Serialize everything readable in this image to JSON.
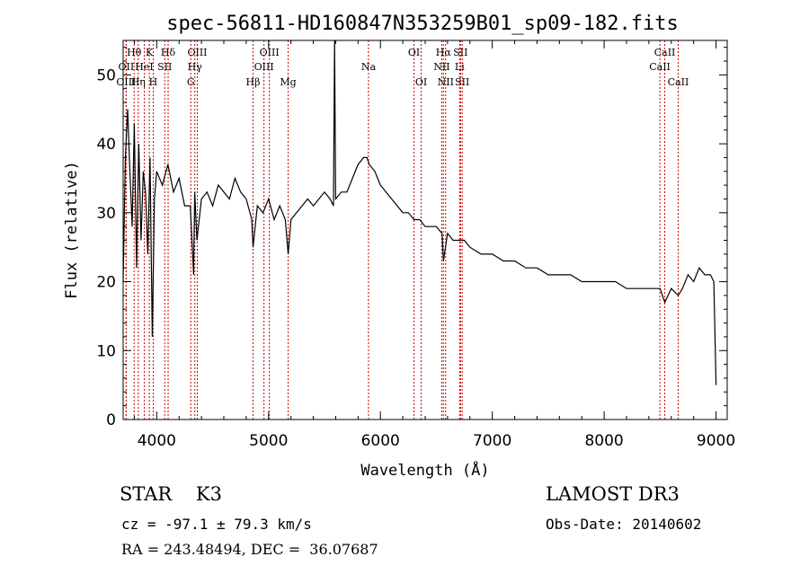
{
  "chart_data": {
    "type": "line",
    "title": "spec-56811-HD160847N353259B01_sp09-182.fits",
    "xlabel": "Wavelength (Å)",
    "ylabel": "Flux (relative)",
    "xlim": [
      3700,
      9100
    ],
    "ylim": [
      0,
      55
    ],
    "xticks": [
      4000,
      5000,
      6000,
      7000,
      8000,
      9000
    ],
    "yticks": [
      0,
      10,
      20,
      30,
      40,
      50
    ],
    "grid": false,
    "series": [
      {
        "x": [
          3700,
          3720,
          3740,
          3760,
          3780,
          3800,
          3820,
          3840,
          3860,
          3880,
          3900,
          3920,
          3940,
          3960,
          3980,
          4000,
          4050,
          4100,
          4150,
          4200,
          4250,
          4300,
          4330,
          4340,
          4360,
          4400,
          4450,
          4500,
          4550,
          4600,
          4650,
          4700,
          4750,
          4800,
          4850,
          4861,
          4900,
          4950,
          5000,
          5050,
          5100,
          5150,
          5175,
          5200,
          5250,
          5300,
          5350,
          5400,
          5450,
          5500,
          5550,
          5580,
          5590,
          5600,
          5650,
          5700,
          5750,
          5800,
          5850,
          5880,
          5900,
          5950,
          6000,
          6050,
          6100,
          6150,
          6200,
          6250,
          6300,
          6350,
          6400,
          6450,
          6500,
          6550,
          6563,
          6600,
          6650,
          6700,
          6750,
          6800,
          6900,
          7000,
          7100,
          7200,
          7300,
          7400,
          7500,
          7600,
          7700,
          7800,
          7900,
          8000,
          8100,
          8200,
          8300,
          8400,
          8500,
          8542,
          8600,
          8662,
          8700,
          8750,
          8800,
          8850,
          8900,
          8950,
          8980,
          9000
        ],
        "y": [
          20,
          38,
          45,
          36,
          28,
          43,
          22,
          40,
          26,
          36,
          33,
          24,
          38,
          12,
          32,
          36,
          34,
          37,
          33,
          35,
          31,
          31,
          21,
          33,
          26,
          32,
          33,
          31,
          34,
          33,
          32,
          35,
          33,
          32,
          29,
          25,
          31,
          30,
          32,
          29,
          31,
          29,
          24,
          29,
          30,
          31,
          32,
          31,
          32,
          33,
          32,
          31,
          55,
          32,
          33,
          33,
          35,
          37,
          38,
          38,
          37,
          36,
          34,
          33,
          32,
          31,
          30,
          30,
          29,
          29,
          28,
          28,
          28,
          27,
          23,
          27,
          26,
          26,
          26,
          25,
          24,
          24,
          23,
          23,
          22,
          22,
          21,
          21,
          21,
          20,
          20,
          20,
          20,
          19,
          19,
          19,
          19,
          17,
          19,
          18,
          19,
          21,
          20,
          22,
          21,
          21,
          20,
          5
        ]
      }
    ],
    "lines": [
      {
        "name": "Hθ",
        "wl": 3798,
        "row": 1
      },
      {
        "name": "OII",
        "wl": 3727,
        "row": 2
      },
      {
        "name": "OIII",
        "wl": 3727,
        "row": 3
      },
      {
        "name": "K",
        "wl": 3934,
        "row": 1
      },
      {
        "name": "HeI",
        "wl": 3889,
        "row": 2
      },
      {
        "name": "Hη",
        "wl": 3835,
        "row": 3
      },
      {
        "name": "Hδ",
        "wl": 4102,
        "row": 1
      },
      {
        "name": "SII",
        "wl": 4072,
        "row": 2
      },
      {
        "name": "H",
        "wl": 3969,
        "row": 3
      },
      {
        "name": "OIII",
        "wl": 4363,
        "row": 1
      },
      {
        "name": "Hγ",
        "wl": 4341,
        "row": 2
      },
      {
        "name": "G",
        "wl": 4305,
        "row": 3
      },
      {
        "name": "OIII",
        "wl": 5007,
        "row": 1
      },
      {
        "name": "OIII",
        "wl": 4959,
        "row": 2
      },
      {
        "name": "Hβ",
        "wl": 4861,
        "row": 3
      },
      {
        "name": "Mg",
        "wl": 5175,
        "row": 3
      },
      {
        "name": "Na",
        "wl": 5893,
        "row": 2
      },
      {
        "name": "OI",
        "wl": 6300,
        "row": 1
      },
      {
        "name": "OI",
        "wl": 6364,
        "row": 3
      },
      {
        "name": "Hα",
        "wl": 6563,
        "row": 1
      },
      {
        "name": "SII",
        "wl": 6716,
        "row": 1
      },
      {
        "name": "NII",
        "wl": 6548,
        "row": 2
      },
      {
        "name": "Li",
        "wl": 6708,
        "row": 2
      },
      {
        "name": "NII",
        "wl": 6583,
        "row": 3
      },
      {
        "name": "SII",
        "wl": 6731,
        "row": 3
      },
      {
        "name": "CaII",
        "wl": 8542,
        "row": 1
      },
      {
        "name": "CaII",
        "wl": 8498,
        "row": 2
      },
      {
        "name": "CaII",
        "wl": 8662,
        "row": 3
      }
    ],
    "line_color": "#cc0000"
  },
  "info": {
    "left_line1": "STAR    K3",
    "left_line2": "cz = -97.1 ± 79.3 km/s",
    "left_line3": "RA = 243.48494, DEC =  36.07687",
    "right_line1": "LAMOST DR3",
    "right_line2": "Obs-Date: 20140602"
  }
}
